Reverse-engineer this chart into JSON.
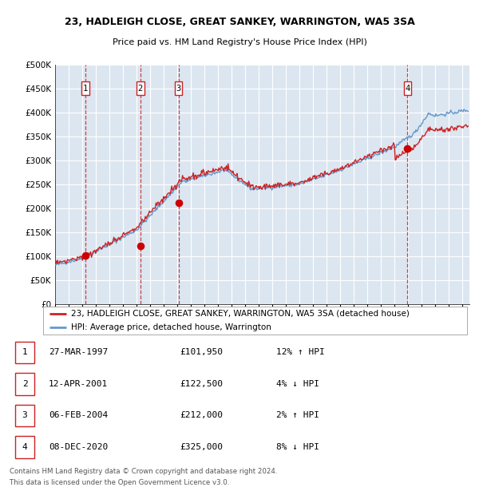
{
  "title1": "23, HADLEIGH CLOSE, GREAT SANKEY, WARRINGTON, WA5 3SA",
  "title2": "Price paid vs. HM Land Registry's House Price Index (HPI)",
  "background_color": "#dce6f1",
  "plot_bg_color": "#dce6f1",
  "grid_color": "#ffffff",
  "hpi_color": "#6699cc",
  "price_color": "#cc2222",
  "sale_marker_color": "#cc0000",
  "dashed_line_color": "#cc2222",
  "ylim": [
    0,
    500000
  ],
  "yticks": [
    0,
    50000,
    100000,
    150000,
    200000,
    250000,
    300000,
    350000,
    400000,
    450000,
    500000
  ],
  "xlim_start": 1995.0,
  "xlim_end": 2025.5,
  "xtick_years": [
    1995,
    1996,
    1997,
    1998,
    1999,
    2000,
    2001,
    2002,
    2003,
    2004,
    2005,
    2006,
    2007,
    2008,
    2009,
    2010,
    2011,
    2012,
    2013,
    2014,
    2015,
    2016,
    2017,
    2018,
    2019,
    2020,
    2021,
    2022,
    2023,
    2024,
    2025
  ],
  "sales": [
    {
      "num": 1,
      "year": 1997.23,
      "price": 101950,
      "label": "27-MAR-1997",
      "price_str": "£101,950",
      "pct": "12%",
      "dir": "↑"
    },
    {
      "num": 2,
      "year": 2001.28,
      "price": 122500,
      "label": "12-APR-2001",
      "price_str": "£122,500",
      "pct": "4%",
      "dir": "↓"
    },
    {
      "num": 3,
      "year": 2004.09,
      "price": 212000,
      "label": "06-FEB-2004",
      "price_str": "£212,000",
      "pct": "2%",
      "dir": "↑"
    },
    {
      "num": 4,
      "year": 2020.93,
      "price": 325000,
      "label": "08-DEC-2020",
      "price_str": "£325,000",
      "pct": "8%",
      "dir": "↓"
    }
  ],
  "legend_label_price": "23, HADLEIGH CLOSE, GREAT SANKEY, WARRINGTON, WA5 3SA (detached house)",
  "legend_label_hpi": "HPI: Average price, detached house, Warrington",
  "footer1": "Contains HM Land Registry data © Crown copyright and database right 2024.",
  "footer2": "This data is licensed under the Open Government Licence v3.0."
}
